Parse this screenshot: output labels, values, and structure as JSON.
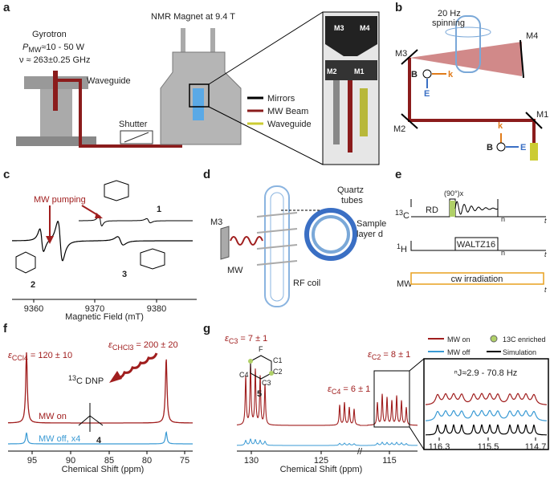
{
  "panels": {
    "a": {
      "label": "a",
      "gyrotron": "Gyrotron",
      "power": {
        "p": "P",
        "sub": "MW",
        "rest": "≈10 - 50 W"
      },
      "freq": "ν ≈ 263±0.25 GHz",
      "waveguide": "Waveguide",
      "shutter": "Shutter",
      "magnet": "NMR Magnet at 9.4 T",
      "legend": [
        "Mirrors",
        "MW Beam",
        "Waveguide"
      ],
      "mirrors": [
        "M3",
        "M4",
        "M2",
        "M1"
      ]
    },
    "b": {
      "label": "b",
      "spinning": [
        "20 Hz",
        "spinning"
      ],
      "mirrors": [
        "M4",
        "M3",
        "M2",
        "M1"
      ],
      "vectors": [
        "B",
        "k",
        "E",
        "k",
        "B",
        "E"
      ]
    },
    "c": {
      "label": "c",
      "pumping": "MW pumping",
      "compounds": [
        "1",
        "2",
        "3"
      ],
      "xticks": [
        "9360",
        "9370",
        "9380"
      ],
      "xlabel": "Magnetic Field (mT)"
    },
    "d": {
      "label": "d",
      "m3": "M3",
      "mw": "MW",
      "rf": "RF coil",
      "tubes": [
        "Quartz",
        "tubes"
      ],
      "sample": [
        "Sample",
        "layer d"
      ]
    },
    "e": {
      "label": "e",
      "c13": {
        "sup": "13",
        "el": "C"
      },
      "rd": "RD",
      "pulse": "(90°)x",
      "h1": {
        "sup": "1",
        "el": "H"
      },
      "waltz": "WALTZ16",
      "mw": "MW",
      "cw": "cw irradiation",
      "n": "n",
      "t": "t"
    },
    "f": {
      "label": "f",
      "eps1": {
        "e": "ε",
        "sub": "CCl4",
        "rest": " = 120 ± 10"
      },
      "eps2": {
        "e": "ε",
        "sub": "CHCl3",
        "rest": " = 200 ± 20"
      },
      "dnp": {
        "sup": "13",
        "rest": "C DNP"
      },
      "mw_on": "MW on",
      "mw_off": "MW off, x4",
      "compound": "4",
      "xticks": [
        "95",
        "90",
        "85",
        "80",
        "75"
      ],
      "xlabel": "Chemical Shift (ppm)"
    },
    "g": {
      "label": "g",
      "eps": [
        {
          "e": "ε",
          "sub": "C3",
          "rest": " = 7 ± 1"
        },
        {
          "e": "ε",
          "sub": "C4",
          "rest": " = 6 ± 1"
        },
        {
          "e": "ε",
          "sub": "C2",
          "rest": " = 8 ± 1"
        }
      ],
      "compound": "5",
      "atoms": [
        "F",
        "C1",
        "C2",
        "C3",
        "C4"
      ],
      "xticks": [
        "130",
        "125",
        "115"
      ],
      "xlabel": "Chemical Shift (ppm)",
      "legend": [
        "MW on",
        "MW off",
        "13C enriched",
        "Simulation"
      ],
      "coupling": "ⁿJ≈2.9 - 70.8 Hz",
      "inset_ticks": [
        "116.3",
        "115.5",
        "114.7"
      ]
    }
  }
}
